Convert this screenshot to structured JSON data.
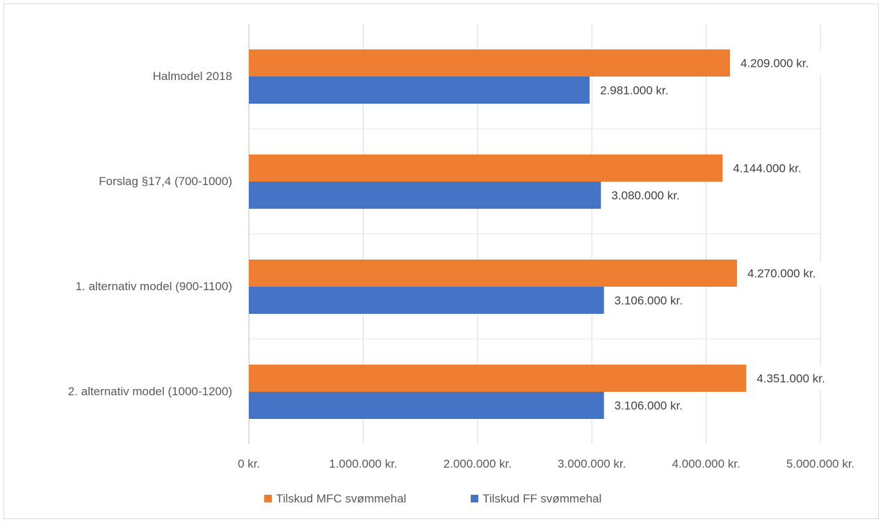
{
  "chart_data": {
    "type": "bar",
    "orientation": "horizontal",
    "title": "",
    "xlabel": "",
    "ylabel": "",
    "categories": [
      "Halmodel 2018",
      "Forslag §17,4 (700-1000)",
      "1. alternativ model (900-1100)",
      "2. alternativ model (1000-1200)"
    ],
    "series": [
      {
        "name": "Tilskud MFC svømmehal",
        "color": "#ED7D31",
        "values": [
          4209000,
          4144000,
          4270000,
          4351000
        ],
        "labels": [
          "4.209.000 kr.",
          "4.144.000 kr.",
          "4.270.000 kr.",
          "4.351.000 kr."
        ]
      },
      {
        "name": "Tilskud FF svømmehal",
        "color": "#4472C4",
        "values": [
          2981000,
          3080000,
          3106000,
          3106000
        ],
        "labels": [
          "2.981.000 kr.",
          "3.080.000 kr.",
          "3.106.000 kr.",
          "3.106.000 kr."
        ]
      }
    ],
    "xlim": [
      0,
      5000000
    ],
    "xticks": [
      0,
      1000000,
      2000000,
      3000000,
      4000000,
      5000000
    ],
    "xtick_labels": [
      "0 kr.",
      "1.000.000 kr.",
      "2.000.000 kr.",
      "3.000.000 kr.",
      "4.000.000 kr.",
      "5.000.000 kr."
    ],
    "grid": true,
    "legend": "bottom"
  }
}
